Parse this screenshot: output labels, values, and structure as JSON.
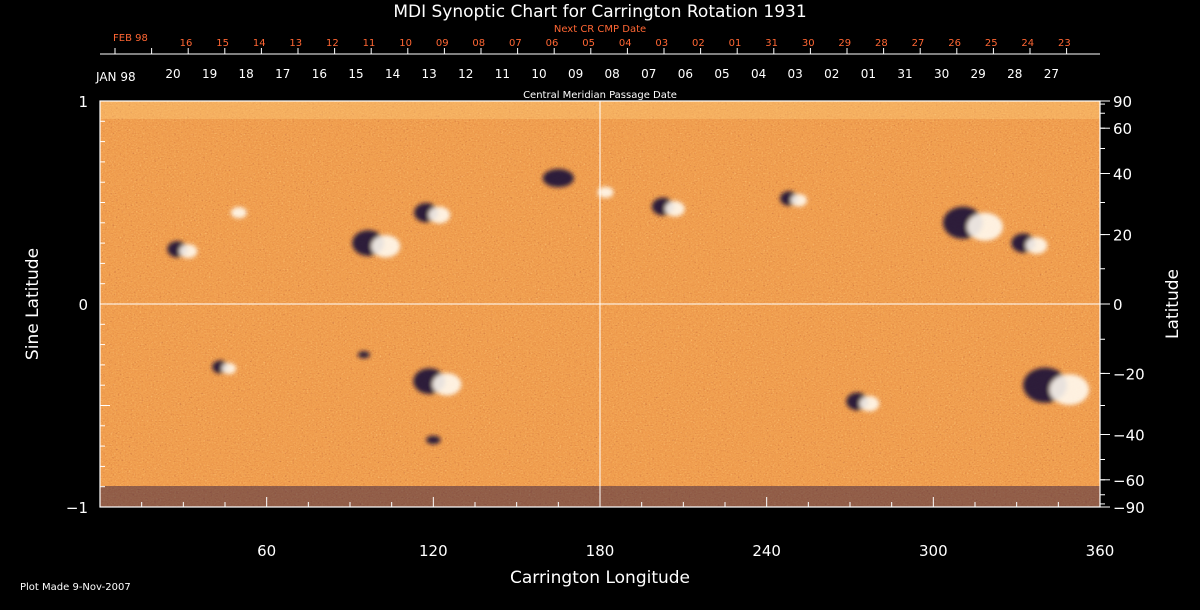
{
  "chart_data": {
    "type": "heatmap",
    "title": "MDI Synoptic Chart for Carrington Rotation 1931",
    "xlabel": "Carrington Longitude",
    "ylabel_left": "Sine Latitude",
    "ylabel_right": "Latitude",
    "xlim": [
      0,
      360
    ],
    "ylim_sine": [
      -1,
      1
    ],
    "x_tick_labels": [
      "60",
      "120",
      "180",
      "240",
      "300",
      "360"
    ],
    "x_ticks": [
      60,
      120,
      180,
      240,
      300,
      360
    ],
    "y_left_ticks": [
      1,
      0,
      -1
    ],
    "y_left_tick_labels": [
      "1",
      "0",
      "−1"
    ],
    "y_right_ticks": [
      90,
      60,
      40,
      20,
      0,
      -20,
      -40,
      -60,
      -90
    ],
    "y_right_tick_labels": [
      "90",
      "60",
      "40",
      "20",
      "0",
      "−20",
      "−40",
      "−60",
      "−90"
    ],
    "cmp_axis": {
      "title": "Central Meridian Passage Date",
      "month_label": "JAN 98",
      "labels": [
        "20",
        "19",
        "18",
        "17",
        "16",
        "15",
        "14",
        "13",
        "12",
        "11",
        "10",
        "09",
        "08",
        "07",
        "06",
        "05",
        "04",
        "03",
        "02",
        "01",
        "31",
        "30",
        "29",
        "28",
        "27"
      ]
    },
    "next_cmp_axis": {
      "title": "Next CR CMP Date",
      "month_label": "FEB 98",
      "labels": [
        "16",
        "15",
        "14",
        "13",
        "12",
        "11",
        "10",
        "09",
        "08",
        "07",
        "06",
        "05",
        "04",
        "03",
        "02",
        "01",
        "31",
        "30",
        "29",
        "28",
        "27",
        "26",
        "25",
        "24",
        "23"
      ]
    },
    "reference_lines": {
      "longitude": 180,
      "sine_latitude": 0
    },
    "active_regions": [
      {
        "lon": 30,
        "sinlat": 0.27,
        "polarity": "mixed",
        "size": 1.0
      },
      {
        "lon": 50,
        "sinlat": 0.45,
        "polarity": "positive",
        "size": 0.8
      },
      {
        "lon": 100,
        "sinlat": 0.3,
        "polarity": "mixed",
        "size": 1.6
      },
      {
        "lon": 120,
        "sinlat": 0.45,
        "polarity": "mixed",
        "size": 1.2
      },
      {
        "lon": 165,
        "sinlat": 0.62,
        "polarity": "negative",
        "size": 1.3
      },
      {
        "lon": 182,
        "sinlat": 0.55,
        "polarity": "positive",
        "size": 0.8
      },
      {
        "lon": 205,
        "sinlat": 0.48,
        "polarity": "mixed",
        "size": 1.1
      },
      {
        "lon": 250,
        "sinlat": 0.52,
        "polarity": "mixed",
        "size": 0.9
      },
      {
        "lon": 315,
        "sinlat": 0.4,
        "polarity": "mixed",
        "size": 2.0
      },
      {
        "lon": 335,
        "sinlat": 0.3,
        "polarity": "mixed",
        "size": 1.2
      },
      {
        "lon": 45,
        "sinlat": -0.31,
        "polarity": "mixed",
        "size": 0.8
      },
      {
        "lon": 95,
        "sinlat": -0.25,
        "polarity": "negative",
        "size": 0.5
      },
      {
        "lon": 122,
        "sinlat": -0.38,
        "polarity": "mixed",
        "size": 1.6
      },
      {
        "lon": 120,
        "sinlat": -0.67,
        "polarity": "negative",
        "size": 0.6
      },
      {
        "lon": 275,
        "sinlat": -0.48,
        "polarity": "mixed",
        "size": 1.1
      },
      {
        "lon": 345,
        "sinlat": -0.4,
        "polarity": "mixed",
        "size": 2.2
      }
    ]
  },
  "footer": {
    "plot_made": "Plot Made  9-Nov-2007"
  },
  "colors": {
    "background": "#000000",
    "field_base": "#e05818",
    "field_positive": "#ffffff",
    "field_negative": "#1a1040",
    "next_cmp_text": "#ff6633"
  }
}
